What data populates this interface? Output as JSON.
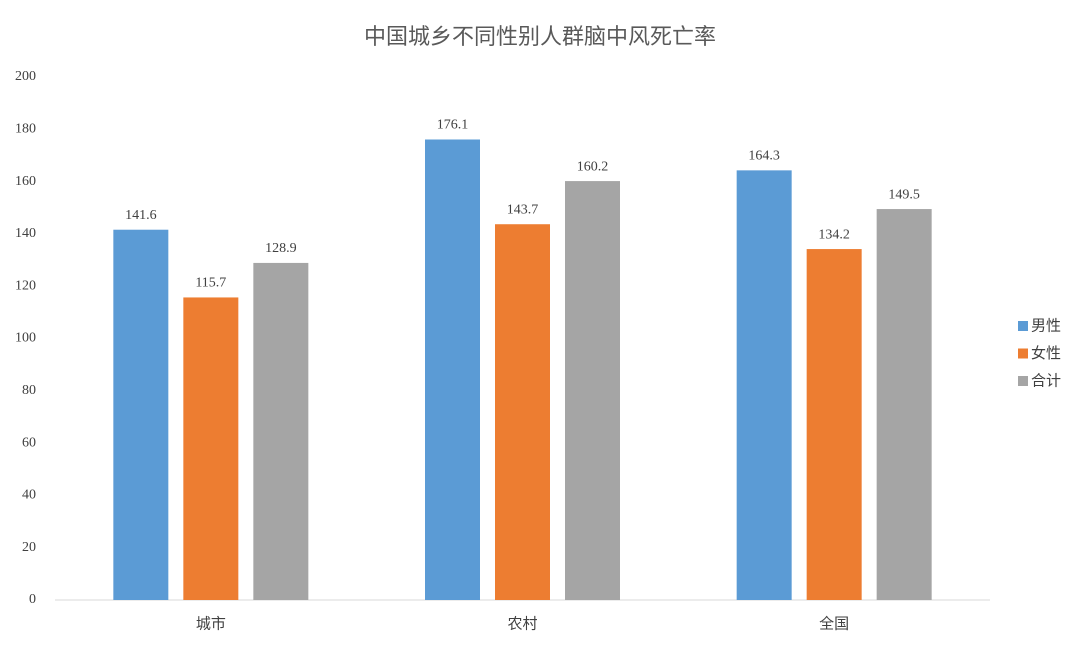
{
  "chart_data": {
    "type": "bar",
    "title": "中国城乡不同性别人群脑中风死亡率",
    "categories": [
      "城市",
      "农村",
      "全国"
    ],
    "series": [
      {
        "name": "男性",
        "color": "#5b9bd5",
        "values": [
          141.6,
          176.1,
          164.3
        ]
      },
      {
        "name": "女性",
        "color": "#ed7d31",
        "values": [
          115.7,
          143.7,
          134.2
        ]
      },
      {
        "name": "合计",
        "color": "#a5a5a5",
        "values": [
          128.9,
          160.2,
          149.5
        ]
      }
    ],
    "ylim": [
      0,
      200
    ],
    "yticks": [
      0,
      20,
      40,
      60,
      80,
      100,
      120,
      140,
      160,
      180,
      200
    ],
    "grid": false,
    "legend": "right"
  }
}
